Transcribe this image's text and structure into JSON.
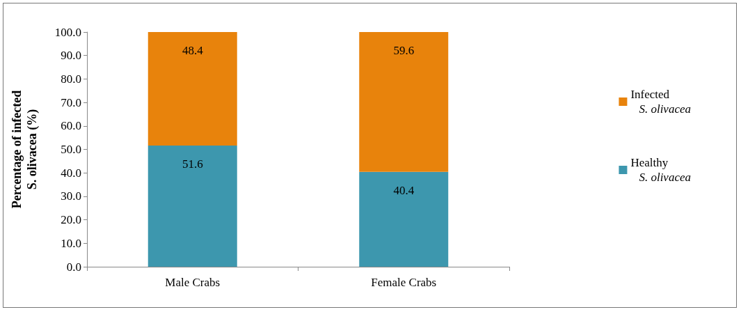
{
  "chart_data": {
    "type": "bar",
    "ylabel": "Percentage of infected\nS. olivacea (%)",
    "categories": [
      "Male Crabs",
      "Female Crabs"
    ],
    "stacked": true,
    "data_labels": true,
    "legend": "right",
    "grid": false,
    "series": [
      {
        "name": "Healthy\nS. olivacea",
        "color": "#3d97ae",
        "values": [
          51.6,
          40.4
        ]
      },
      {
        "name": "Infected\nS. olivacea",
        "color": "#e8830c",
        "values": [
          48.4,
          59.6
        ]
      }
    ],
    "ylim": [
      0,
      100
    ],
    "yticks": [
      {
        "value": 0,
        "label": "0.0"
      },
      {
        "value": 10,
        "label": "10.0"
      },
      {
        "value": 20,
        "label": "20.0"
      },
      {
        "value": 30,
        "label": "30.0"
      },
      {
        "value": 40,
        "label": "40.0"
      },
      {
        "value": 50,
        "label": "50.0"
      },
      {
        "value": 60,
        "label": "60.0"
      },
      {
        "value": 70,
        "label": "70.0"
      },
      {
        "value": 80,
        "label": "80.0"
      },
      {
        "value": 90,
        "label": "90.0"
      },
      {
        "value": 100,
        "label": "100.0"
      }
    ]
  }
}
